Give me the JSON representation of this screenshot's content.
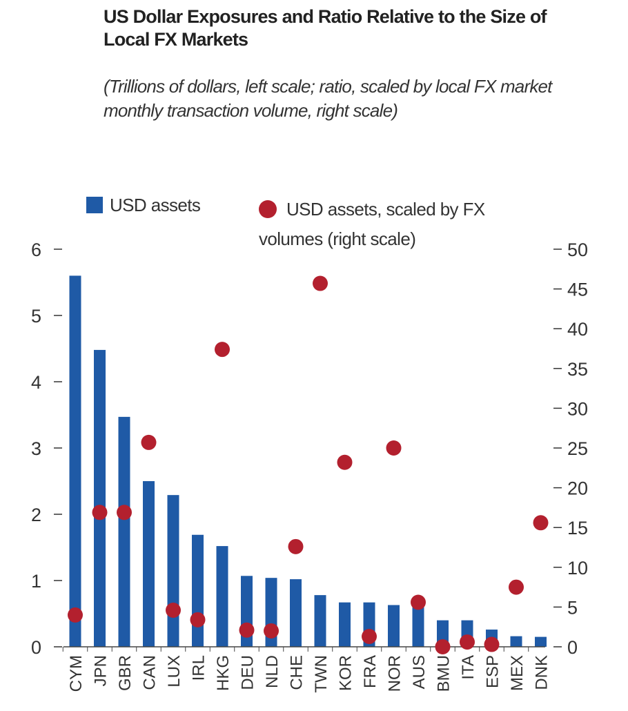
{
  "chart_data": {
    "type": "bar",
    "title": "US Dollar Exposures and Ratio Relative to the Size of Local FX Markets",
    "subtitle": "(Trillions of dollars, left scale; ratio, scaled by local FX market monthly transaction volume, right scale)",
    "categories": [
      "CYM",
      "JPN",
      "GBR",
      "CAN",
      "LUX",
      "IRL",
      "HKG",
      "DEU",
      "NLD",
      "CHE",
      "TWN",
      "KOR",
      "FRA",
      "NOR",
      "AUS",
      "BMU",
      "ITA",
      "ESP",
      "MEX",
      "DNK"
    ],
    "series": [
      {
        "name": "USD assets",
        "type": "bar",
        "axis": "left",
        "color": "#1f5aa6",
        "values": [
          5.6,
          4.48,
          3.47,
          2.5,
          2.29,
          1.69,
          1.52,
          1.07,
          1.04,
          1.02,
          0.78,
          0.67,
          0.67,
          0.63,
          0.6,
          0.4,
          0.4,
          0.26,
          0.16,
          0.15
        ]
      },
      {
        "name": "USD assets, scaled by FX volumes (right scale)",
        "type": "scatter",
        "axis": "right",
        "color": "#b3202e",
        "values": [
          4.0,
          16.9,
          16.9,
          25.7,
          4.6,
          3.4,
          37.4,
          2.1,
          2.0,
          12.6,
          45.7,
          23.2,
          1.3,
          25.0,
          5.6,
          0.0,
          0.6,
          0.3,
          7.5,
          15.6
        ]
      }
    ],
    "left_axis": {
      "ylim": [
        0,
        6
      ],
      "ticks": [
        "0",
        "1",
        "2",
        "3",
        "4",
        "5",
        "6"
      ]
    },
    "right_axis": {
      "ylim": [
        0,
        50
      ],
      "ticks": [
        "0",
        "5",
        "10",
        "15",
        "20",
        "25",
        "30",
        "35",
        "40",
        "45",
        "50"
      ]
    },
    "legend_placement": "top",
    "grid": false
  }
}
